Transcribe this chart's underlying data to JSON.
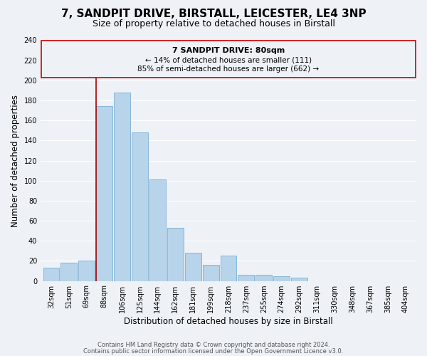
{
  "title": "7, SANDPIT DRIVE, BIRSTALL, LEICESTER, LE4 3NP",
  "subtitle": "Size of property relative to detached houses in Birstall",
  "xlabel": "Distribution of detached houses by size in Birstall",
  "ylabel": "Number of detached properties",
  "bar_labels": [
    "32sqm",
    "51sqm",
    "69sqm",
    "88sqm",
    "106sqm",
    "125sqm",
    "144sqm",
    "162sqm",
    "181sqm",
    "199sqm",
    "218sqm",
    "237sqm",
    "255sqm",
    "274sqm",
    "292sqm",
    "311sqm",
    "330sqm",
    "348sqm",
    "367sqm",
    "385sqm",
    "404sqm"
  ],
  "bar_values": [
    13,
    18,
    20,
    174,
    188,
    148,
    101,
    53,
    28,
    16,
    25,
    6,
    6,
    5,
    3,
    0,
    0,
    0,
    0,
    0,
    0
  ],
  "bar_color": "#b8d4ea",
  "bar_edge_color": "#7aaed4",
  "ylim": [
    0,
    240
  ],
  "yticks": [
    0,
    20,
    40,
    60,
    80,
    100,
    120,
    140,
    160,
    180,
    200,
    220,
    240
  ],
  "property_label": "7 SANDPIT DRIVE: 80sqm",
  "annotation_line1": "← 14% of detached houses are smaller (111)",
  "annotation_line2": "85% of semi-detached houses are larger (662) →",
  "vline_color": "#aa0000",
  "box_color": "#cc0000",
  "footer_line1": "Contains HM Land Registry data © Crown copyright and database right 2024.",
  "footer_line2": "Contains public sector information licensed under the Open Government Licence v3.0.",
  "background_color": "#eef2f7",
  "grid_color": "#d8e4f0",
  "title_fontsize": 11,
  "subtitle_fontsize": 9,
  "axis_label_fontsize": 8.5,
  "tick_fontsize": 7,
  "footer_fontsize": 6
}
